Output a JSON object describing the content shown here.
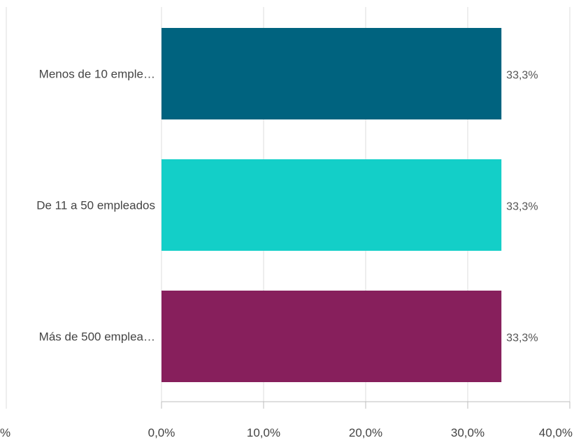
{
  "chart_data": {
    "type": "bar",
    "orientation": "horizontal",
    "categories": [
      "Menos de 10 emple…",
      "De 11 a 50 empleados",
      "Más de 500 emplea…"
    ],
    "values": [
      33.3,
      33.3,
      33.3
    ],
    "value_labels": [
      "33,3%",
      "33,3%",
      "33,3%"
    ],
    "colors": [
      "#00637f",
      "#13cfc8",
      "#871f5c"
    ],
    "xlim": [
      0,
      40
    ],
    "x_ticks": [
      0,
      10,
      20,
      30,
      40
    ],
    "x_tick_labels": [
      "0,0%",
      "10,0%",
      "20,0%",
      "30,0%",
      "40,0%"
    ],
    "clipped_left_tick_label": "%",
    "title": "",
    "xlabel": "",
    "ylabel": "",
    "grid": true,
    "legend": "none"
  }
}
